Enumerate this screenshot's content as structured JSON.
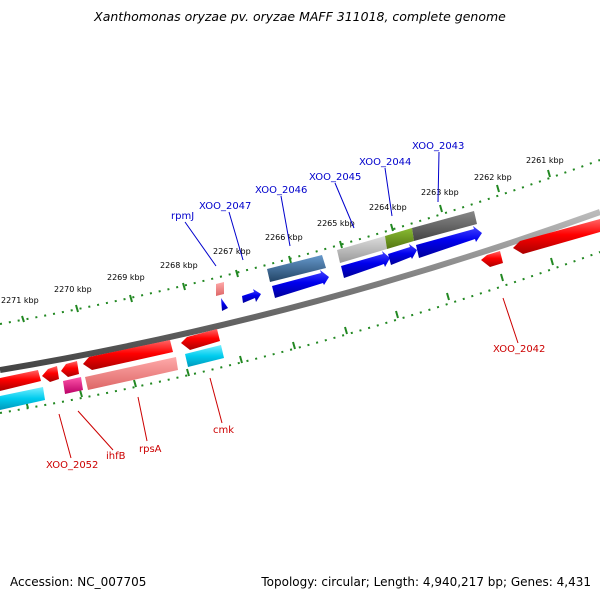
{
  "title": "Xanthomonas oryzae pv. oryzae MAFF 311018, complete genome",
  "footer": {
    "accession": "Accession: NC_007705",
    "topology": "Topology: circular; Length: 4,940,217 bp; Genes: 4,431"
  },
  "scale_labels": [
    "2271 kbp",
    "2270 kbp",
    "2269 kbp",
    "2268 kbp",
    "2267 kbp",
    "2266 kbp",
    "2265 kbp",
    "2264 kbp",
    "2263 kbp",
    "2262 kbp",
    "2261 kbp"
  ],
  "top_gene_labels": [
    "rpmJ",
    "XOO_2047",
    "XOO_2046",
    "XOO_2045",
    "XOO_2044",
    "XOO_2043"
  ],
  "bottom_gene_labels": [
    "XOO_2052",
    "ihfB",
    "rpsA",
    "cmk",
    "XOO_2042"
  ],
  "colors": {
    "forward": "#0000ee",
    "reverse": "#ee0000",
    "tick": "#228822",
    "label_blue": "#0000cc",
    "label_red": "#cc0000"
  }
}
